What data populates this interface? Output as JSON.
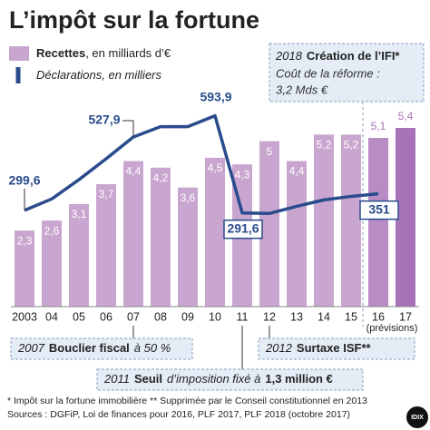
{
  "chart_data": {
    "type": "bar-line",
    "title": "L’impôt sur la fortune",
    "categories": [
      "2003",
      "04",
      "05",
      "06",
      "07",
      "08",
      "09",
      "10",
      "11",
      "12",
      "13",
      "14",
      "15",
      "16",
      "17"
    ],
    "forecast_label": "(prévisions)",
    "ylim": [
      0,
      6.8
    ],
    "y2lim": [
      0,
      700
    ],
    "series": [
      {
        "name": "Recettes",
        "unit": ", en milliards d’€",
        "color": "#c9a6cf",
        "colors": [
          "#c9a6cf",
          "#c9a6cf",
          "#c9a6cf",
          "#c9a6cf",
          "#c9a6cf",
          "#c9a6cf",
          "#c9a6cf",
          "#c9a6cf",
          "#c9a6cf",
          "#c9a6cf",
          "#c9a6cf",
          "#c9a6cf",
          "#c9a6cf",
          "#b98cc6",
          "#a872b8"
        ],
        "values": [
          2.3,
          2.6,
          3.1,
          3.7,
          4.4,
          4.2,
          3.6,
          4.5,
          4.3,
          5,
          4.4,
          5.2,
          5.2,
          5.1,
          5.4
        ],
        "value_labels": [
          "2,3",
          "2,6",
          "3,1",
          "3,7",
          "4,4",
          "4,2",
          "3,6",
          "4,5",
          "4,3",
          "5",
          "4,4",
          "5,2",
          "5,2",
          "5,1",
          "5,4"
        ]
      },
      {
        "name": "Déclarations",
        "unit": ", en milliers",
        "color": "#2a4b8c",
        "axis": "y2",
        "values": [
          299.6,
          335,
          395,
          460,
          527.9,
          560,
          560,
          593.9,
          291.6,
          290,
          312,
          332,
          343,
          351,
          null
        ],
        "value_labels": [
          "299,6",
          null,
          null,
          null,
          "527,9",
          null,
          null,
          "593,9",
          "291,6",
          null,
          null,
          null,
          null,
          "351",
          null
        ]
      }
    ],
    "annotations": [
      {
        "parts": [
          {
            "text": "2018",
            "bold": false
          },
          {
            "text": "Création de l’IFI*",
            "bold": true
          }
        ],
        "lines": [
          "Coût de la réforme :",
          "3,2 Mds €"
        ]
      },
      {
        "parts": [
          {
            "text": "2007",
            "bold": false
          },
          {
            "text": "Bouclier fiscal",
            "bold": true
          },
          {
            "text": "à 50 %",
            "bold": false
          }
        ]
      },
      {
        "parts": [
          {
            "text": "2012",
            "bold": false
          },
          {
            "text": "Surtaxe ISF**",
            "bold": true
          }
        ]
      },
      {
        "parts": [
          {
            "text": "2011",
            "bold": false
          },
          {
            "text": "Seuil",
            "bold": true
          },
          {
            "text": "d’imposition fixé à",
            "bold": false
          },
          {
            "text": "1,3 million €",
            "bold": true
          }
        ]
      }
    ],
    "footnotes": [
      "* Impôt sur la fortune immobilière  ** Supprimée par le Conseil constitutionnel en 2013",
      "Sources : DGFiP, Loi de finances pour 2016, PLF 2017, PLF 2018 (octobre 2017)"
    ],
    "logo": "IDIX"
  }
}
